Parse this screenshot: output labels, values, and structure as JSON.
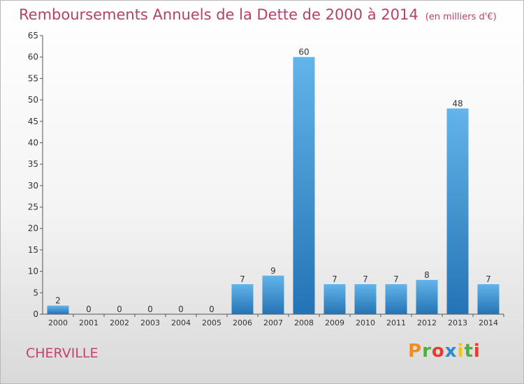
{
  "header": {
    "title": "Remboursements Annuels de la Dette de 2000 à 2014",
    "unit": "(en milliers d'€)"
  },
  "footer": {
    "commune": "CHERVILLE",
    "logo_text": "Proxiti"
  },
  "colors": {
    "title": "#b5416a",
    "bar_light": "#63b4ea",
    "bar_dark": "#2473b5"
  },
  "chart_data": {
    "type": "bar",
    "categories": [
      "2000",
      "2001",
      "2002",
      "2003",
      "2004",
      "2005",
      "2006",
      "2007",
      "2008",
      "2009",
      "2010",
      "2011",
      "2012",
      "2013",
      "2014"
    ],
    "values": [
      2,
      0,
      0,
      0,
      0,
      0,
      7,
      9,
      60,
      7,
      7,
      7,
      8,
      48,
      7
    ],
    "title": "Remboursements Annuels de la Dette de 2000 à 2014",
    "xlabel": "",
    "ylabel": "",
    "ylim": [
      0,
      65
    ],
    "yticks": [
      0,
      5,
      10,
      15,
      20,
      25,
      30,
      35,
      40,
      45,
      50,
      55,
      60,
      65
    ],
    "grid": false,
    "legend": "none"
  }
}
